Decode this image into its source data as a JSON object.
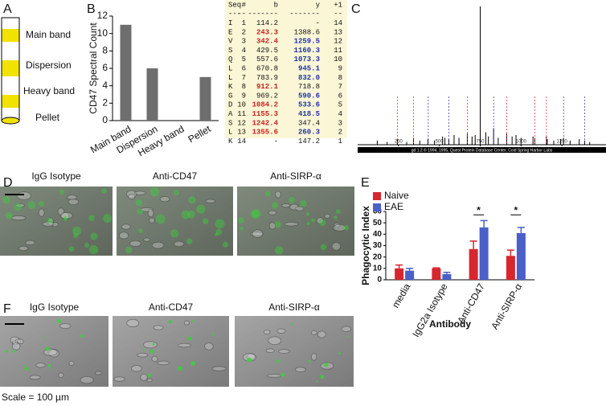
{
  "panel_labels": [
    "A",
    "B",
    "C",
    "D",
    "E",
    "F"
  ],
  "tube": {
    "labels": [
      "Main band",
      "Dispersion",
      "Heavy band",
      "Pellet"
    ],
    "band_color": "#f2e200"
  },
  "table": {
    "header": [
      "Seq",
      "#",
      "b",
      "y",
      "+1"
    ],
    "separator": [
      "---",
      "--",
      "-------",
      "-------",
      "--"
    ],
    "rows": [
      [
        "I",
        "1",
        "114.2",
        "-",
        "14"
      ],
      [
        "E",
        "2",
        "243.3",
        "1388.6",
        "13"
      ],
      [
        "V",
        "3",
        "342.4",
        "1259.5",
        "12"
      ],
      [
        "S",
        "4",
        "429.5",
        "1160.3",
        "11"
      ],
      [
        "Q",
        "5",
        "557.6",
        "1073.3",
        "10"
      ],
      [
        "L",
        "6",
        "670.8",
        "945.1",
        "9"
      ],
      [
        "L",
        "7",
        "783.9",
        "832.0",
        "8"
      ],
      [
        "K",
        "8",
        "912.1",
        "718.8",
        "7"
      ],
      [
        "G",
        "9",
        "969.2",
        "590.6",
        "6"
      ],
      [
        "D",
        "10",
        "1084.2",
        "533.6",
        "5"
      ],
      [
        "A",
        "11",
        "1155.3",
        "418.5",
        "4"
      ],
      [
        "S",
        "12",
        "1242.4",
        "347.4",
        "3"
      ],
      [
        "L",
        "13",
        "1355.6",
        "260.3",
        "2"
      ],
      [
        "K",
        "14",
        "-",
        "147.2",
        "1"
      ]
    ],
    "b_marked": [
      1,
      2,
      7,
      9,
      10,
      11,
      12
    ],
    "y_marked": [
      2,
      3,
      4,
      5,
      6,
      8,
      9,
      10,
      12
    ],
    "b_color": "#cc2222",
    "y_color": "#2233aa",
    "background": "#fbf6d6"
  },
  "chart_data": [
    {
      "type": "bar",
      "ylabel": "CD47 Spectral Count",
      "categories": [
        "Main band",
        "Dispersion",
        "Heavy band",
        "Pellet"
      ],
      "values": [
        11,
        6,
        0,
        5
      ],
      "color": "#6e6e6e",
      "ylim": [
        0,
        12
      ],
      "yticks": [
        0,
        2,
        4,
        6,
        8,
        10,
        12
      ]
    },
    {
      "type": "spectrum",
      "footer": "gd 1.2 © 1994, 1995, Quest Protein Database Center, Cold Spring Harbor Labs",
      "xlim": [
        0,
        1500
      ],
      "xticks": [
        250,
        500,
        750,
        1000,
        1250
      ],
      "ylim": [
        0,
        100
      ],
      "x": [
        120,
        180,
        243,
        300,
        342,
        380,
        430,
        470,
        520,
        534,
        558,
        590,
        620,
        671,
        700,
        719,
        750,
        784,
        800,
        832,
        860,
        912,
        945,
        969,
        1000,
        1073,
        1084,
        1155,
        1160,
        1200,
        1242,
        1260,
        1300,
        1356,
        1389,
        1420
      ],
      "values": [
        3,
        2,
        4,
        2,
        5,
        3,
        4,
        3,
        6,
        5,
        4,
        7,
        5,
        8,
        6,
        7,
        100,
        9,
        6,
        12,
        5,
        8,
        6,
        7,
        5,
        6,
        5,
        6,
        4,
        3,
        4,
        5,
        3,
        4,
        3,
        2
      ],
      "color": "#000000"
    },
    {
      "type": "grouped_bar",
      "ylabel": "Phagocytic Index",
      "xlabel": "Antibody",
      "categories": [
        "media",
        "IgG2a Isotype",
        "Anti-CD47",
        "Anti-SIRP-α"
      ],
      "series": [
        {
          "name": "Naive",
          "color": "#d7262e",
          "values": [
            10,
            10,
            27,
            21
          ],
          "errors": [
            3,
            0.5,
            7,
            5
          ]
        },
        {
          "name": "EAE",
          "color": "#4a5fc8",
          "values": [
            8,
            5,
            46,
            41
          ],
          "errors": [
            2,
            1.5,
            6,
            5
          ]
        }
      ],
      "ylim": [
        0,
        60
      ],
      "yticks": [
        0,
        10,
        20,
        30,
        40,
        50,
        60
      ],
      "annotations": [
        {
          "text": "*",
          "category": 2
        },
        {
          "text": "*",
          "category": 3
        }
      ]
    }
  ],
  "images": {
    "d_titles": [
      "IgG Isotype",
      "Anti-CD47",
      "Anti-SIRP-α"
    ],
    "f_titles": [
      "IgG Isotype",
      "Anti-CD47",
      "Anti-SIRP-α"
    ]
  },
  "scale_note": "Scale = 100 µm"
}
